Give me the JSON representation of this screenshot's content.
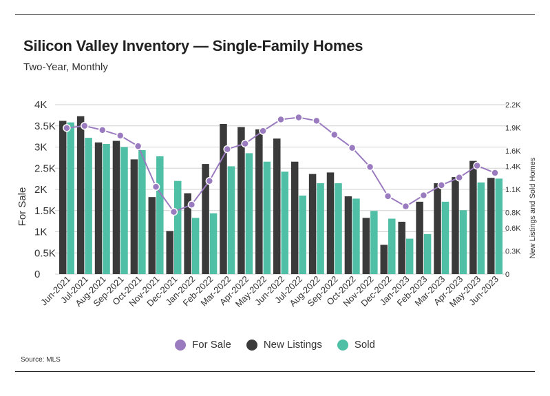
{
  "header": {
    "title": "Silicon Valley Inventory — Single-Family Homes",
    "subtitle": "Two-Year, Monthly"
  },
  "footer": {
    "source": "Source:  MLS"
  },
  "colors": {
    "for_sale": "#9b7bbf",
    "new_listings": "#3a3a3a",
    "sold": "#4fbfa6",
    "grid": "#d0d0d0"
  },
  "chart_data": {
    "type": "bar",
    "title": "Silicon Valley Inventory — Single-Family Homes",
    "subtitle": "Two-Year, Monthly",
    "categories": [
      "Jun-2021",
      "Jul-2021",
      "Aug-2021",
      "Sep-2021",
      "Oct-2021",
      "Nov-2021",
      "Dec-2021",
      "Jan-2022",
      "Feb-2022",
      "Mar-2022",
      "Apr-2022",
      "May-2022",
      "Jun-2022",
      "Jul-2022",
      "Aug-2022",
      "Sep-2022",
      "Oct-2022",
      "Nov-2022",
      "Dec-2022",
      "Jan-2023",
      "Feb-2023",
      "Mar-2023",
      "Apr-2023",
      "May-2023",
      "Jun-2023"
    ],
    "ylabel_left": "For Sale",
    "ylabel_right": "New Listings and Sold Homes",
    "left_axis": {
      "ylim": [
        0,
        4000
      ],
      "ticks": [
        0,
        500,
        1000,
        1500,
        2000,
        2500,
        3000,
        3500,
        4000
      ],
      "tick_labels": [
        "0",
        "0.5K",
        "1K",
        "1.5K",
        "2K",
        "2.5K",
        "3K",
        "3.5K",
        "4K"
      ]
    },
    "right_axis": {
      "ylim": [
        0,
        2200
      ],
      "ticks": [
        0,
        300,
        600,
        800,
        1100,
        1400,
        1600,
        1900,
        2200
      ],
      "tick_labels": [
        "0",
        "0.3K",
        "0.6K",
        "0.8K",
        "1.1K",
        "1.4K",
        "1.6K",
        "1.9K",
        "2.2K"
      ]
    },
    "grid": true,
    "legend_position": "bottom",
    "series": [
      {
        "name": "For Sale",
        "type": "line",
        "axis": "left",
        "values": [
          3450,
          3500,
          3400,
          3270,
          3020,
          2060,
          1470,
          1640,
          2200,
          2950,
          3080,
          3380,
          3650,
          3700,
          3620,
          3290,
          2980,
          2530,
          1840,
          1600,
          1860,
          2100,
          2280,
          2560,
          2390
        ]
      },
      {
        "name": "New Listings",
        "type": "bar",
        "axis": "right",
        "values": [
          1990,
          2050,
          1710,
          1730,
          1490,
          1000,
          560,
          1050,
          1430,
          1950,
          1910,
          1880,
          1760,
          1460,
          1300,
          1320,
          1010,
          730,
          380,
          680,
          940,
          1180,
          1260,
          1470,
          1250
        ]
      },
      {
        "name": "Sold",
        "type": "bar",
        "axis": "right",
        "values": [
          1970,
          1770,
          1690,
          1650,
          1610,
          1530,
          1210,
          730,
          790,
          1400,
          1570,
          1460,
          1330,
          1020,
          1180,
          1180,
          980,
          820,
          720,
          460,
          520,
          940,
          830,
          1190,
          1240
        ]
      }
    ]
  },
  "legend": {
    "items": [
      {
        "label": "For Sale",
        "color": "#9b7bbf"
      },
      {
        "label": "New Listings",
        "color": "#3a3a3a"
      },
      {
        "label": "Sold",
        "color": "#4fbfa6"
      }
    ]
  }
}
